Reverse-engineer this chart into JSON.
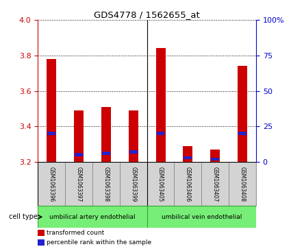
{
  "title": "GDS4778 / 1562655_at",
  "samples": [
    "GSM1063396",
    "GSM1063397",
    "GSM1063398",
    "GSM1063399",
    "GSM1063405",
    "GSM1063406",
    "GSM1063407",
    "GSM1063408"
  ],
  "transformed_count": [
    3.78,
    3.49,
    3.51,
    3.49,
    3.84,
    3.29,
    3.27,
    3.74
  ],
  "percentile_rank": [
    20,
    5,
    6,
    7,
    20,
    3,
    2,
    20
  ],
  "bar_bottom": 3.2,
  "ylim_left": [
    3.2,
    4.0
  ],
  "ylim_right": [
    0,
    100
  ],
  "yticks_left": [
    3.2,
    3.4,
    3.6,
    3.8,
    4.0
  ],
  "yticks_right": [
    0,
    25,
    50,
    75,
    100
  ],
  "ytick_labels_right": [
    "0",
    "25",
    "50",
    "75",
    "100%"
  ],
  "groups": [
    {
      "label": "umbilical artery endothelial",
      "indices": [
        0,
        1,
        2,
        3
      ],
      "color": "#90EE90"
    },
    {
      "label": "umbilical vein endothelial",
      "indices": [
        4,
        5,
        6,
        7
      ],
      "color": "#90EE90"
    }
  ],
  "cell_type_label": "cell type",
  "legend_items": [
    {
      "label": "transformed count",
      "color": "#cc0000"
    },
    {
      "label": "percentile rank within the sample",
      "color": "#2222cc"
    }
  ],
  "bar_color_red": "#cc0000",
  "bar_color_blue": "#2222cc",
  "tick_color_left": "#cc0000",
  "tick_color_right": "#0000cc",
  "bar_width": 0.35,
  "label_bg": "#d3d3d3",
  "group_bg": "#77ee77"
}
